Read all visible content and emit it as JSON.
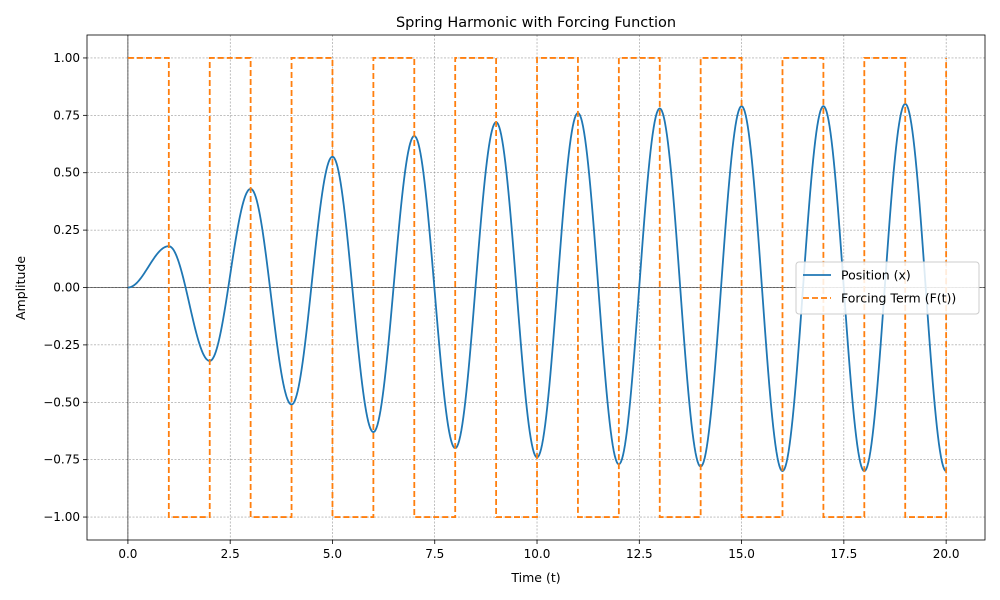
{
  "chart_data": {
    "type": "line",
    "title": "Spring Harmonic with Forcing Function",
    "xlabel": "Time (t)",
    "ylabel": "Amplitude",
    "xlim": [
      -1.0,
      20.95
    ],
    "ylim": [
      -1.1,
      1.1
    ],
    "xticks": [
      0.0,
      2.5,
      5.0,
      7.5,
      10.0,
      12.5,
      15.0,
      17.5,
      20.0
    ],
    "xtick_labels": [
      "0.0",
      "2.5",
      "5.0",
      "7.5",
      "10.0",
      "12.5",
      "15.0",
      "17.5",
      "20.0"
    ],
    "yticks": [
      -1.0,
      -0.75,
      -0.5,
      -0.25,
      0.0,
      0.25,
      0.5,
      0.75,
      1.0
    ],
    "ytick_labels": [
      "−1.00",
      "−0.75",
      "−0.50",
      "−0.25",
      "0.00",
      "0.25",
      "0.50",
      "0.75",
      "1.00"
    ],
    "grid": true,
    "legend_position": "center-right",
    "series": [
      {
        "name": "Position (x)",
        "style": "solid",
        "color": "#1f77b4",
        "extrema": [
          [
            0.0,
            0.0
          ],
          [
            1.0,
            0.18
          ],
          [
            2.0,
            -0.32
          ],
          [
            3.0,
            0.43
          ],
          [
            4.0,
            -0.51
          ],
          [
            5.0,
            0.57
          ],
          [
            6.0,
            -0.63
          ],
          [
            7.0,
            0.66
          ],
          [
            8.0,
            -0.7
          ],
          [
            9.0,
            0.72
          ],
          [
            10.0,
            -0.74
          ],
          [
            11.0,
            0.76
          ],
          [
            12.0,
            -0.77
          ],
          [
            13.0,
            0.78
          ],
          [
            14.0,
            -0.78
          ],
          [
            15.0,
            0.79
          ],
          [
            16.0,
            -0.8
          ],
          [
            17.0,
            0.79
          ],
          [
            18.0,
            -0.8
          ],
          [
            19.0,
            0.8
          ],
          [
            20.0,
            -0.8
          ]
        ]
      },
      {
        "name": "Forcing Term (F(t))",
        "style": "dashed",
        "color": "#ff7f0e",
        "x": [
          0.0,
          1.0,
          1.0,
          2.0,
          2.0,
          3.0,
          3.0,
          4.0,
          4.0,
          5.0,
          5.0,
          6.0,
          6.0,
          7.0,
          7.0,
          8.0,
          8.0,
          9.0,
          9.0,
          10.0,
          10.0,
          11.0,
          11.0,
          12.0,
          12.0,
          13.0,
          13.0,
          14.0,
          14.0,
          15.0,
          15.0,
          16.0,
          16.0,
          17.0,
          17.0,
          18.0,
          18.0,
          19.0,
          19.0,
          20.0,
          20.0
        ],
        "y": [
          1,
          1,
          -1,
          -1,
          1,
          1,
          -1,
          -1,
          1,
          1,
          -1,
          -1,
          1,
          1,
          -1,
          -1,
          1,
          1,
          -1,
          -1,
          1,
          1,
          -1,
          -1,
          1,
          1,
          -1,
          -1,
          1,
          1,
          -1,
          -1,
          1,
          1,
          -1,
          -1,
          1,
          1,
          -1,
          -1,
          1
        ]
      }
    ]
  }
}
